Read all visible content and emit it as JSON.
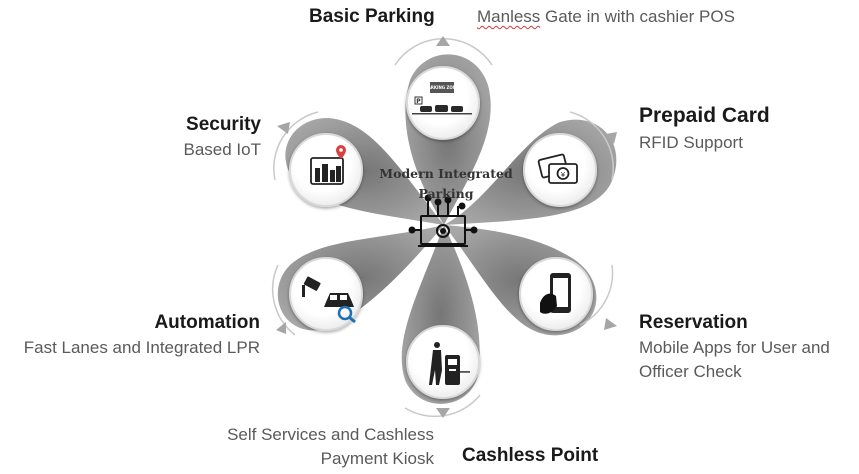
{
  "center": {
    "line1": "Modern Integrated",
    "line2": "Parking",
    "icon": "integrated-parking-chip-icon"
  },
  "features": {
    "basic_parking": {
      "title": "Basic Parking",
      "desc_pre": "Manless",
      "desc_post": " Gate in with cashier POS",
      "icon": "parking-zone-icon",
      "sign_text": "PARKING ZONE"
    },
    "prepaid_card": {
      "title": "Prepaid Card",
      "desc": "RFID Support",
      "icon": "prepaid-card-icon"
    },
    "reservation": {
      "title": "Reservation",
      "desc_line1": "Mobile Apps for User and",
      "desc_line2": "Officer Check",
      "icon": "smartphone-tap-icon"
    },
    "cashless_point": {
      "title": "Cashless Point",
      "desc_line1": "Self Services and Cashless",
      "desc_line2": "Payment Kiosk",
      "icon": "payment-kiosk-icon"
    },
    "automation": {
      "title": "Automation",
      "desc": "Fast Lanes and Integrated LPR",
      "icon": "cctv-car-search-icon"
    },
    "security": {
      "title": "Security",
      "desc": "Based IoT",
      "icon": "iot-city-icon"
    }
  },
  "colors": {
    "petal": "#8e8e8e",
    "petal_light": "#bdbdbd",
    "circle_border": "#d9d9d9",
    "arrow": "#a6a6a6",
    "title": "#1a1a1a",
    "desc": "#5a5a5a",
    "icon": "#222222"
  }
}
